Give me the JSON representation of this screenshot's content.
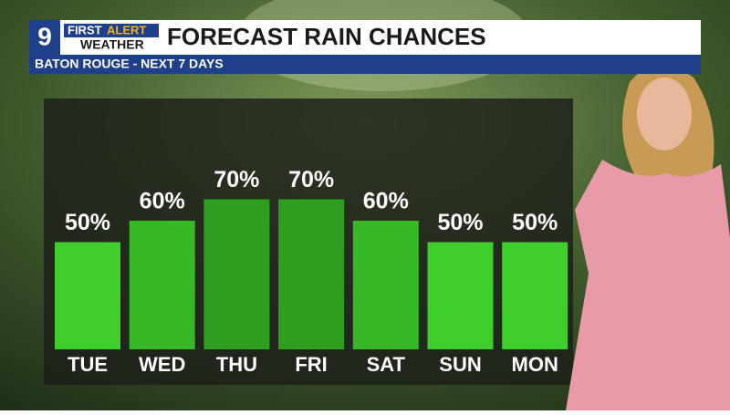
{
  "logo": {
    "number": "9",
    "first": "FIRST",
    "alert": "ALERT",
    "weather": "WEATHER"
  },
  "chart_data": {
    "type": "bar",
    "title": "FORECAST RAIN CHANCES",
    "subtitle": "BATON ROUGE - NEXT 7 DAYS",
    "categories": [
      "TUE",
      "WED",
      "THU",
      "FRI",
      "SAT",
      "SUN",
      "MON"
    ],
    "values": [
      50,
      60,
      70,
      70,
      60,
      50,
      50
    ],
    "value_labels": [
      "50%",
      "60%",
      "70%",
      "70%",
      "60%",
      "50%",
      "50%"
    ],
    "colors": [
      "#3fcf2c",
      "#37b826",
      "#2f9f21",
      "#2f9f21",
      "#37b826",
      "#3fcf2c",
      "#3fcf2c"
    ]
  }
}
